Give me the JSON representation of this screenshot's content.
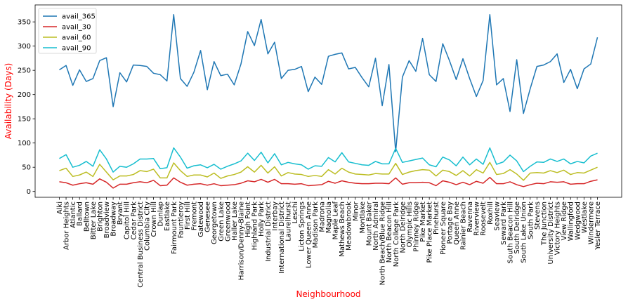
{
  "chart_data": {
    "type": "line",
    "xlabel": "Neighbourhood",
    "ylabel": "Availability (Days)",
    "label_color": "#ff0000",
    "ylim": [
      -12,
      385
    ],
    "yticks": [
      0,
      50,
      100,
      150,
      200,
      250,
      300,
      350
    ],
    "grid": false,
    "legend": "top-left",
    "categories": [
      "Alki",
      "Arbor Heights",
      "Atlantic",
      "Ballard",
      "Belltown",
      "Bitter Lake",
      "Brighton",
      "Broadview",
      "Broadway",
      "Bryant",
      "Capitol Hill",
      "Cedar Park",
      "Central Business District",
      "Columbia City",
      "Crown Hill",
      "Dunlap",
      "Eastlake",
      "Fairmount Park",
      "Fauntleroy",
      "First Hill",
      "Fremont",
      "Gatewood",
      "Genesee",
      "Georgetown",
      "Green Lake",
      "Greenwood",
      "Haller Lake",
      "Harrison/Denny-Blaine",
      "High Point",
      "Highland Park",
      "Holly Park",
      "Industrial District",
      "Interbay",
      "International District",
      "Laurelhurst",
      "Leschi",
      "Licton Springs",
      "Lower Queen Anne",
      "Madison Park",
      "Madrona",
      "Magnolia",
      "Maple Leaf",
      "Mathews Beach",
      "Meadowbrook",
      "Minor",
      "Montlake",
      "Mount Baker",
      "North Admiral",
      "North Beach/Blue Ridge",
      "North Beacon Hill",
      "North College Park",
      "North Delridge",
      "Olympic Hills",
      "Phinney Ridge",
      "Pike Market",
      "Pike Place Market",
      "Pinehurst",
      "Pioneer Square",
      "Portage Bay",
      "Queen Anne",
      "Rainier Beach",
      "Ravenna",
      "Riverview",
      "Roosevelt",
      "Roxhill",
      "Seaview",
      "Seward Park",
      "South Beacon Hill",
      "South Delridge",
      "South Lake Union",
      "South Park",
      "Stevens",
      "The Junction",
      "University District",
      "Victory Heights",
      "View Ridge",
      "Wallingford",
      "Wedgwood",
      "Westlake",
      "Windermere",
      "Yesler Terrace"
    ],
    "series": [
      {
        "name": "avail_365",
        "color": "#1f77b4",
        "values": [
          251,
          260,
          219,
          251,
          227,
          233,
          270,
          276,
          175,
          245,
          226,
          261,
          260,
          258,
          244,
          241,
          228,
          365,
          233,
          217,
          246,
          291,
          210,
          268,
          239,
          242,
          220,
          263,
          330,
          301,
          355,
          284,
          308,
          233,
          250,
          252,
          258,
          206,
          236,
          221,
          279,
          283,
          286,
          253,
          256,
          235,
          216,
          275,
          177,
          262,
          82,
          236,
          270,
          248,
          316,
          241,
          227,
          305,
          270,
          231,
          274,
          233,
          196,
          229,
          365,
          220,
          233,
          165,
          272,
          161,
          212,
          258,
          261,
          268,
          284,
          225,
          252,
          212,
          253,
          263,
          318
        ]
      },
      {
        "name": "avail_30",
        "color": "#d62728",
        "values": [
          20,
          18,
          13,
          16,
          18,
          15,
          26,
          19,
          7,
          15,
          15,
          18,
          20,
          18,
          23,
          12,
          13,
          28,
          19,
          13,
          15,
          16,
          13,
          16,
          12,
          13,
          14,
          17,
          22,
          20,
          25,
          19,
          25,
          16,
          16,
          15,
          16,
          12,
          13,
          14,
          21,
          17,
          22,
          19,
          17,
          16,
          16,
          17,
          17,
          16,
          28,
          15,
          18,
          18,
          19,
          18,
          12,
          22,
          19,
          14,
          19,
          14,
          21,
          17,
          29,
          16,
          16,
          20,
          14,
          10,
          14,
          17,
          16,
          20,
          19,
          20,
          15,
          16,
          16,
          21,
          24
        ]
      },
      {
        "name": "avail_60",
        "color": "#bcbd22",
        "values": [
          43,
          48,
          31,
          34,
          40,
          31,
          56,
          40,
          24,
          32,
          32,
          35,
          43,
          41,
          46,
          28,
          28,
          59,
          43,
          31,
          34,
          34,
          30,
          38,
          27,
          32,
          35,
          40,
          51,
          40,
          54,
          38,
          51,
          32,
          39,
          36,
          35,
          31,
          33,
          31,
          45,
          36,
          48,
          40,
          36,
          35,
          34,
          37,
          36,
          36,
          58,
          35,
          40,
          43,
          45,
          44,
          32,
          44,
          41,
          33,
          43,
          32,
          45,
          38,
          60,
          35,
          37,
          45,
          36,
          23,
          38,
          39,
          38,
          43,
          39,
          44,
          35,
          39,
          38,
          44,
          50
        ]
      },
      {
        "name": "avail_90",
        "color": "#17becf",
        "values": [
          68,
          76,
          50,
          54,
          62,
          52,
          86,
          67,
          40,
          52,
          50,
          57,
          67,
          67,
          68,
          47,
          49,
          90,
          71,
          48,
          53,
          55,
          49,
          56,
          46,
          52,
          57,
          63,
          79,
          64,
          81,
          59,
          78,
          55,
          60,
          57,
          55,
          46,
          53,
          52,
          70,
          61,
          80,
          61,
          58,
          55,
          54,
          62,
          57,
          57,
          89,
          60,
          63,
          66,
          69,
          55,
          51,
          71,
          65,
          53,
          71,
          55,
          67,
          56,
          90,
          56,
          61,
          75,
          63,
          41,
          52,
          61,
          60,
          67,
          62,
          67,
          57,
          62,
          59,
          73,
          79
        ]
      }
    ]
  }
}
